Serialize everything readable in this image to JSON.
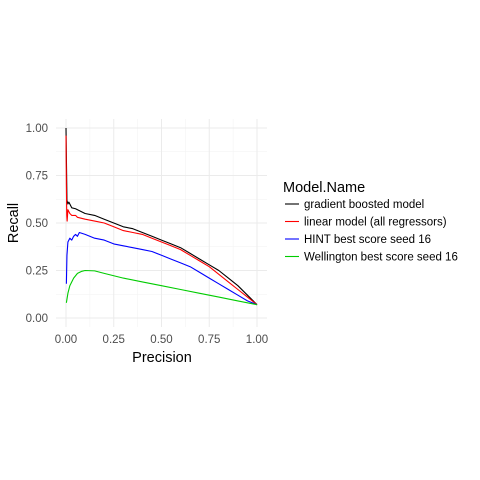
{
  "chart_data": {
    "type": "line",
    "xlabel": "Precision",
    "ylabel": "Recall",
    "xlim": [
      0,
      1
    ],
    "ylim": [
      0,
      1
    ],
    "x_ticks": [
      "0.00",
      "0.25",
      "0.50",
      "0.75",
      "1.00"
    ],
    "y_ticks": [
      "0.00",
      "0.25",
      "0.50",
      "0.75",
      "1.00"
    ],
    "grid": true,
    "legend_title": "Model.Name",
    "legend_position": "right",
    "series": [
      {
        "name": "gradient boosted model",
        "color": "#000000",
        "points": [
          [
            0,
            1.0
          ],
          [
            0.002,
            0.85
          ],
          [
            0.005,
            0.62
          ],
          [
            0.01,
            0.6
          ],
          [
            0.015,
            0.61
          ],
          [
            0.03,
            0.58
          ],
          [
            0.05,
            0.575
          ],
          [
            0.08,
            0.56
          ],
          [
            0.1,
            0.55
          ],
          [
            0.15,
            0.54
          ],
          [
            0.2,
            0.52
          ],
          [
            0.25,
            0.5
          ],
          [
            0.3,
            0.48
          ],
          [
            0.35,
            0.47
          ],
          [
            0.4,
            0.45
          ],
          [
            0.45,
            0.43
          ],
          [
            0.5,
            0.41
          ],
          [
            0.55,
            0.39
          ],
          [
            0.6,
            0.37
          ],
          [
            0.65,
            0.34
          ],
          [
            0.7,
            0.31
          ],
          [
            0.75,
            0.28
          ],
          [
            0.8,
            0.25
          ],
          [
            0.85,
            0.21
          ],
          [
            0.9,
            0.17
          ],
          [
            0.95,
            0.12
          ],
          [
            1.0,
            0.07
          ]
        ]
      },
      {
        "name": "linear model (all regressors)",
        "color": "#ff0000",
        "points": [
          [
            0,
            0.96
          ],
          [
            0.002,
            0.7
          ],
          [
            0.004,
            0.54
          ],
          [
            0.006,
            0.51
          ],
          [
            0.01,
            0.57
          ],
          [
            0.02,
            0.55
          ],
          [
            0.03,
            0.54
          ],
          [
            0.05,
            0.54
          ],
          [
            0.06,
            0.53
          ],
          [
            0.1,
            0.52
          ],
          [
            0.15,
            0.51
          ],
          [
            0.2,
            0.5
          ],
          [
            0.25,
            0.48
          ],
          [
            0.3,
            0.46
          ],
          [
            0.35,
            0.45
          ],
          [
            0.4,
            0.44
          ],
          [
            0.45,
            0.42
          ],
          [
            0.5,
            0.4
          ],
          [
            0.55,
            0.38
          ],
          [
            0.6,
            0.36
          ],
          [
            0.65,
            0.33
          ],
          [
            0.7,
            0.3
          ],
          [
            0.75,
            0.27
          ],
          [
            0.8,
            0.23
          ],
          [
            0.85,
            0.19
          ],
          [
            0.9,
            0.15
          ],
          [
            0.95,
            0.11
          ],
          [
            1.0,
            0.07
          ]
        ]
      },
      {
        "name": "HINT best score seed 16",
        "color": "#0000ff",
        "points": [
          [
            0.002,
            0.18
          ],
          [
            0.005,
            0.33
          ],
          [
            0.01,
            0.4
          ],
          [
            0.02,
            0.42
          ],
          [
            0.03,
            0.41
          ],
          [
            0.04,
            0.43
          ],
          [
            0.05,
            0.44
          ],
          [
            0.06,
            0.43
          ],
          [
            0.07,
            0.45
          ],
          [
            0.1,
            0.44
          ],
          [
            0.15,
            0.42
          ],
          [
            0.2,
            0.41
          ],
          [
            0.25,
            0.39
          ],
          [
            0.3,
            0.38
          ],
          [
            0.35,
            0.37
          ],
          [
            0.4,
            0.36
          ],
          [
            0.45,
            0.35
          ],
          [
            0.5,
            0.33
          ],
          [
            0.55,
            0.31
          ],
          [
            0.6,
            0.29
          ],
          [
            0.65,
            0.27
          ],
          [
            0.7,
            0.24
          ],
          [
            0.75,
            0.21
          ],
          [
            0.8,
            0.18
          ],
          [
            0.85,
            0.15
          ],
          [
            0.9,
            0.12
          ],
          [
            0.95,
            0.09
          ],
          [
            1.0,
            0.07
          ]
        ]
      },
      {
        "name": "Wellington best score seed 16",
        "color": "#00cc00",
        "points": [
          [
            0.002,
            0.08
          ],
          [
            0.01,
            0.13
          ],
          [
            0.02,
            0.17
          ],
          [
            0.04,
            0.21
          ],
          [
            0.06,
            0.235
          ],
          [
            0.08,
            0.245
          ],
          [
            0.1,
            0.25
          ],
          [
            0.15,
            0.248
          ],
          [
            0.2,
            0.235
          ],
          [
            0.3,
            0.21
          ],
          [
            0.4,
            0.19
          ],
          [
            0.5,
            0.17
          ],
          [
            0.6,
            0.15
          ],
          [
            0.7,
            0.13
          ],
          [
            0.8,
            0.11
          ],
          [
            0.9,
            0.09
          ],
          [
            1.0,
            0.07
          ]
        ]
      }
    ]
  }
}
